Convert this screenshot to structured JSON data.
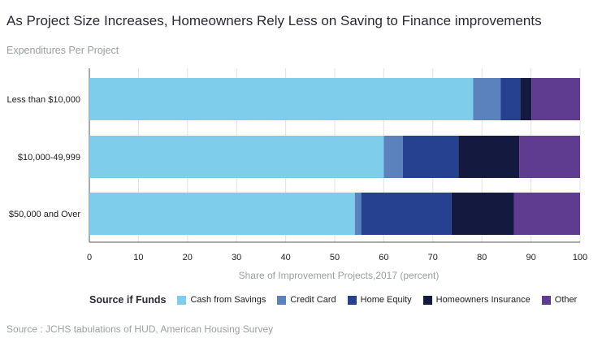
{
  "title": "As Project Size Increases, Homeowners Rely Less on Saving to Finance improvements",
  "subtitle": "Expenditures Per Project",
  "source": "Source : JCHS tabulations of HUD, American Housing Survey",
  "legend_title": "Source if Funds",
  "chart_data": {
    "type": "bar",
    "orientation": "horizontal",
    "stacked": true,
    "title": "As Project Size Increases, Homeowners Rely Less on Saving to Finance improvements",
    "subtitle": "Expenditures Per Project",
    "xlabel": "Share of Improvement Projects,2017 (percent)",
    "ylabel": "",
    "xlim": [
      0,
      100
    ],
    "xticks": [
      0,
      10,
      20,
      30,
      40,
      50,
      60,
      70,
      80,
      90,
      100
    ],
    "grid": true,
    "legend_position": "bottom",
    "categories": [
      "Less than $10,000",
      "$10,000-49,999",
      "$50,000 and Over"
    ],
    "series": [
      {
        "name": "Cash from Savings",
        "color": "#7ecdea",
        "values": [
          78.2,
          60.0,
          54.1
        ]
      },
      {
        "name": "Credit Card",
        "color": "#5b82bd",
        "values": [
          5.6,
          3.9,
          1.3
        ]
      },
      {
        "name": "Home Equity",
        "color": "#25418f",
        "values": [
          4.0,
          11.3,
          18.4
        ]
      },
      {
        "name": "Homeowners Insurance",
        "color": "#14193f",
        "values": [
          2.3,
          12.4,
          12.7
        ]
      },
      {
        "name": "Other",
        "color": "#603c91",
        "values": [
          9.9,
          12.4,
          13.5
        ]
      }
    ]
  }
}
